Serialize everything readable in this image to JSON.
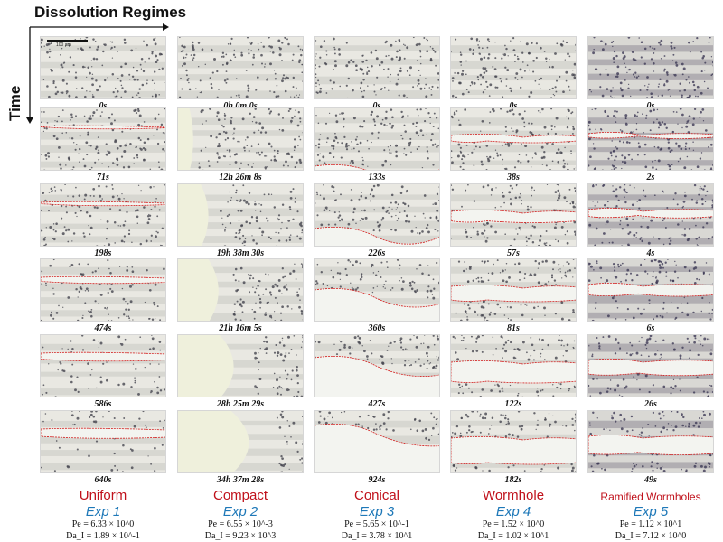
{
  "figure": {
    "title": "Dissolution Regimes",
    "time_axis_label": "Time",
    "scale_bar_label": "100 µm"
  },
  "columns": [
    {
      "regime": "Uniform",
      "experiment": "Exp 1",
      "pe": "Pe = 6.33 × 10^0",
      "dai": "Da_I = 1.89 × 10^-1",
      "times": [
        "0s",
        "71s",
        "198s",
        "474s",
        "586s",
        "640s"
      ],
      "dissolution_progress": [
        0,
        0.05,
        0.15,
        0.45,
        0.65,
        0.8
      ],
      "pattern": "uniform"
    },
    {
      "regime": "Compact",
      "experiment": "Exp 2",
      "pe": "Pe = 6.55 × 10^-3",
      "dai": "Da_I = 9.23 × 10^3",
      "times": [
        "0h 0m 0s",
        "12h 26m 8s",
        "19h 38m 30s",
        "21h 16m 5s",
        "28h 25m 29s",
        "34h 37m 28s"
      ],
      "dissolution_progress": [
        0,
        0.15,
        0.3,
        0.4,
        0.55,
        0.7
      ],
      "pattern": "compact"
    },
    {
      "regime": "Conical",
      "experiment": "Exp 3",
      "pe": "Pe = 5.65 × 10^-1",
      "dai": "Da_I = 3.78 × 10^1",
      "times": [
        "0s",
        "133s",
        "226s",
        "360s",
        "427s",
        "924s"
      ],
      "dissolution_progress": [
        0,
        0.1,
        0.35,
        0.6,
        0.75,
        0.9
      ],
      "pattern": "conical"
    },
    {
      "regime": "Wormhole",
      "experiment": "Exp 4",
      "pe": "Pe = 1.52 × 10^0",
      "dai": "Da_I = 1.02 × 10^1",
      "times": [
        "0s",
        "38s",
        "57s",
        "81s",
        "122s",
        "182s"
      ],
      "dissolution_progress": [
        0,
        0.2,
        0.35,
        0.5,
        0.7,
        0.9
      ],
      "pattern": "wormhole"
    },
    {
      "regime": "Ramified Wormholes",
      "experiment": "Exp 5",
      "pe": "Pe = 1.12 × 10^1",
      "dai": "Da_I = 7.12 × 10^0",
      "times": [
        "0s",
        "2s",
        "4s",
        "6s",
        "26s",
        "49s"
      ],
      "dissolution_progress": [
        0,
        0.15,
        0.3,
        0.45,
        0.6,
        0.75
      ],
      "pattern": "ramified"
    }
  ]
}
